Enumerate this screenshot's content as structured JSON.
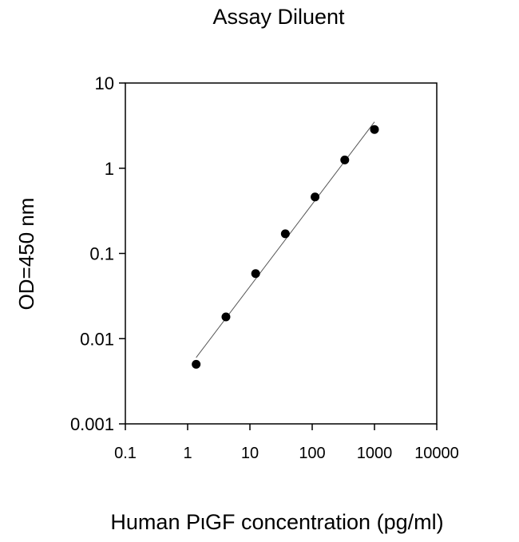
{
  "chart_data": {
    "type": "scatter",
    "title": "Assay Diluent",
    "xlabel": "Human PιGF  concentration (pg/ml)",
    "ylabel": "OD=450 nm",
    "x_scale": "log",
    "y_scale": "log",
    "xlim": [
      0.1,
      10000
    ],
    "ylim": [
      0.001,
      10
    ],
    "x_ticks": [
      0.1,
      1,
      10,
      100,
      1000,
      10000
    ],
    "x_tick_labels": [
      "0.1",
      "1",
      "10",
      "100",
      "1000",
      "10000"
    ],
    "y_ticks": [
      0.001,
      0.01,
      0.1,
      1,
      10
    ],
    "y_tick_labels": [
      "0.001",
      "0.01",
      "0.1",
      "1",
      "10"
    ],
    "grid": false,
    "series": [
      {
        "x": [
          1.37,
          4.12,
          12.35,
          37.04,
          111.1,
          333.3,
          1000
        ],
        "y": [
          0.005,
          0.018,
          0.058,
          0.17,
          0.46,
          1.25,
          2.85
        ]
      }
    ],
    "fit_line": {
      "x": [
        1.37,
        1000
      ],
      "y": [
        0.006,
        3.5
      ]
    },
    "colors": {
      "marker": "#000000",
      "line": "#555555",
      "axes": "#000000"
    }
  }
}
